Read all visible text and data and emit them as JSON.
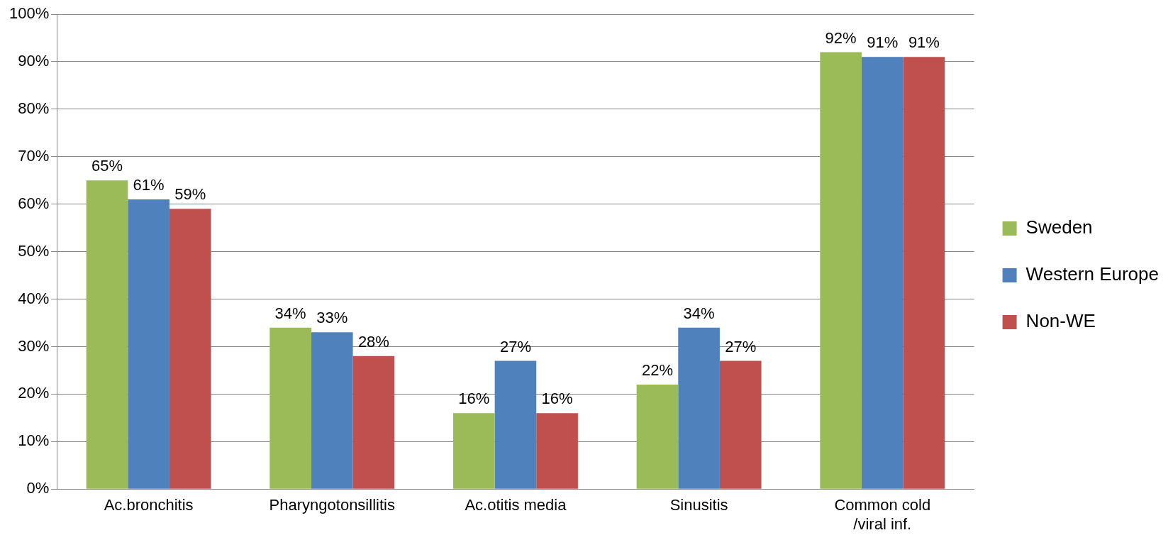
{
  "chart_data": {
    "type": "bar",
    "categories": [
      "Ac.bronchitis",
      "Pharyngotonsillitis",
      "Ac.otitis media",
      "Sinusitis",
      "Common cold /viral inf."
    ],
    "series": [
      {
        "name": "Sweden",
        "color": "#9bbb59",
        "values": [
          65,
          34,
          16,
          22,
          92
        ],
        "value_labels": [
          "65%",
          "34%",
          "16%",
          "22%",
          "92%"
        ]
      },
      {
        "name": "Western Europe",
        "color": "#4f81bd",
        "values": [
          61,
          33,
          27,
          34,
          91
        ],
        "value_labels": [
          "61%",
          "33%",
          "27%",
          "34%",
          "91%"
        ]
      },
      {
        "name": "Non-WE",
        "color": "#c0504d",
        "values": [
          59,
          28,
          16,
          27,
          91
        ],
        "value_labels": [
          "59%",
          "28%",
          "16%",
          "27%",
          "91%"
        ]
      }
    ],
    "ylim": [
      0,
      100
    ],
    "yticks": [
      {
        "value": 0,
        "label": "0%"
      },
      {
        "value": 10,
        "label": "10%"
      },
      {
        "value": 20,
        "label": "20%"
      },
      {
        "value": 30,
        "label": "30%"
      },
      {
        "value": 40,
        "label": "40%"
      },
      {
        "value": 50,
        "label": "50%"
      },
      {
        "value": 60,
        "label": "60%"
      },
      {
        "value": 70,
        "label": "70%"
      },
      {
        "value": 80,
        "label": "80%"
      },
      {
        "value": 90,
        "label": "90%"
      },
      {
        "value": 100,
        "label": "100%"
      }
    ],
    "grid": "y",
    "legend": "right"
  }
}
